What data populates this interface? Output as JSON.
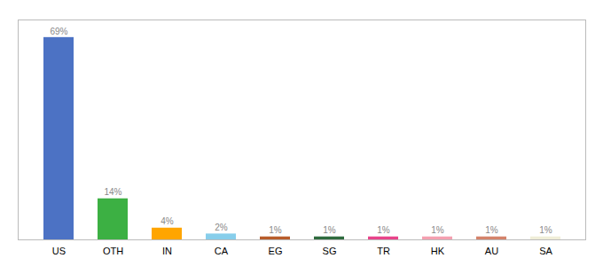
{
  "chart_data": {
    "type": "bar",
    "categories": [
      "US",
      "OTH",
      "IN",
      "CA",
      "EG",
      "SG",
      "TR",
      "HK",
      "AU",
      "SA"
    ],
    "values": [
      69,
      14,
      4,
      2,
      1,
      1,
      1,
      1,
      1,
      1
    ],
    "value_labels": [
      "69%",
      "14%",
      "4%",
      "2%",
      "1%",
      "1%",
      "1%",
      "1%",
      "1%",
      "1%"
    ],
    "colors": [
      "#4C72C4",
      "#3CB043",
      "#FFA500",
      "#87CEEB",
      "#B85C2A",
      "#2E6B3E",
      "#E8438A",
      "#F4A0B0",
      "#D4836A",
      "#F0EED8"
    ],
    "ylim": [
      0,
      75
    ],
    "data_labels": true,
    "tick_labels": "x"
  }
}
